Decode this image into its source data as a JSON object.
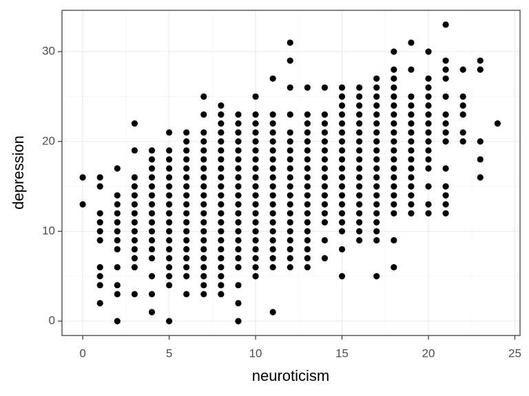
{
  "chart_data": {
    "type": "scatter",
    "x_label": "neuroticism",
    "y_label": "depression",
    "color": "#000000",
    "grid": true,
    "xlim": [
      -1.2,
      25.3
    ],
    "ylim": [
      -1.6,
      34.6
    ],
    "xticks": [
      0,
      5,
      10,
      15,
      20,
      25
    ],
    "yticks": [
      0,
      10,
      20,
      30
    ],
    "x": [
      0,
      0,
      1,
      1,
      1,
      1,
      1,
      1,
      1,
      1,
      1,
      1,
      2,
      2,
      2,
      2,
      2,
      2,
      2,
      2,
      2,
      2,
      2,
      2,
      3,
      3,
      3,
      3,
      3,
      3,
      3,
      3,
      3,
      3,
      3,
      3,
      3,
      3,
      4,
      4,
      4,
      4,
      4,
      4,
      4,
      4,
      4,
      4,
      4,
      4,
      4,
      4,
      4,
      4,
      5,
      5,
      5,
      5,
      5,
      5,
      5,
      5,
      5,
      5,
      5,
      5,
      5,
      5,
      5,
      5,
      5,
      5,
      6,
      6,
      6,
      6,
      6,
      6,
      6,
      6,
      6,
      6,
      6,
      6,
      6,
      6,
      6,
      6,
      6,
      6,
      7,
      7,
      7,
      7,
      7,
      7,
      7,
      7,
      7,
      7,
      7,
      7,
      7,
      7,
      7,
      7,
      7,
      7,
      7,
      7,
      7,
      8,
      8,
      8,
      8,
      8,
      8,
      8,
      8,
      8,
      8,
      8,
      8,
      8,
      8,
      8,
      8,
      8,
      8,
      8,
      8,
      8,
      8,
      9,
      9,
      9,
      9,
      9,
      9,
      9,
      9,
      9,
      9,
      9,
      9,
      9,
      9,
      9,
      9,
      9,
      9,
      9,
      9,
      9,
      10,
      10,
      10,
      10,
      10,
      10,
      10,
      10,
      10,
      10,
      10,
      10,
      10,
      10,
      10,
      10,
      10,
      10,
      10,
      10,
      11,
      11,
      11,
      11,
      11,
      11,
      11,
      11,
      11,
      11,
      11,
      11,
      11,
      11,
      11,
      11,
      11,
      11,
      11,
      11,
      12,
      12,
      12,
      12,
      12,
      12,
      12,
      12,
      12,
      12,
      12,
      12,
      12,
      12,
      12,
      12,
      12,
      12,
      12,
      12,
      13,
      13,
      13,
      13,
      13,
      13,
      13,
      13,
      13,
      13,
      13,
      13,
      13,
      13,
      13,
      13,
      13,
      13,
      13,
      14,
      14,
      14,
      14,
      14,
      14,
      14,
      14,
      14,
      14,
      14,
      14,
      14,
      14,
      14,
      14,
      15,
      15,
      15,
      15,
      15,
      15,
      15,
      15,
      15,
      15,
      15,
      15,
      15,
      15,
      15,
      15,
      15,
      15,
      15,
      16,
      16,
      16,
      16,
      16,
      16,
      16,
      16,
      16,
      16,
      16,
      16,
      16,
      16,
      16,
      16,
      16,
      16,
      17,
      17,
      17,
      17,
      17,
      17,
      17,
      17,
      17,
      17,
      17,
      17,
      17,
      17,
      17,
      17,
      17,
      17,
      17,
      17,
      18,
      18,
      18,
      18,
      18,
      18,
      18,
      18,
      18,
      18,
      18,
      18,
      18,
      18,
      18,
      18,
      18,
      18,
      18,
      18,
      19,
      19,
      19,
      19,
      19,
      19,
      19,
      19,
      19,
      19,
      19,
      19,
      19,
      19,
      19,
      19,
      20,
      20,
      20,
      20,
      20,
      20,
      20,
      20,
      20,
      20,
      20,
      20,
      20,
      20,
      20,
      21,
      21,
      21,
      21,
      21,
      21,
      21,
      21,
      21,
      21,
      21,
      21,
      21,
      21,
      22,
      22,
      22,
      22,
      22,
      22,
      23,
      23,
      23,
      23,
      23,
      24
    ],
    "values": [
      16,
      13,
      16,
      15,
      12,
      11,
      10,
      9,
      6,
      5,
      4,
      2,
      17,
      14,
      13,
      12,
      11,
      10,
      9,
      8,
      6,
      4,
      3,
      0,
      22,
      19,
      16,
      15,
      14,
      13,
      12,
      11,
      10,
      9,
      8,
      7,
      6,
      3,
      19,
      18,
      17,
      16,
      15,
      14,
      13,
      12,
      11,
      10,
      9,
      8,
      7,
      5,
      3,
      1,
      21,
      19,
      18,
      17,
      16,
      15,
      14,
      13,
      12,
      11,
      10,
      9,
      8,
      7,
      6,
      5,
      4,
      0,
      21,
      20,
      19,
      18,
      17,
      16,
      15,
      14,
      13,
      12,
      11,
      10,
      9,
      8,
      7,
      6,
      5,
      3,
      25,
      23,
      21,
      20,
      19,
      18,
      17,
      16,
      15,
      14,
      13,
      12,
      11,
      10,
      9,
      8,
      7,
      6,
      5,
      4,
      3,
      24,
      23,
      22,
      21,
      20,
      19,
      18,
      17,
      16,
      15,
      14,
      13,
      12,
      11,
      10,
      9,
      8,
      7,
      6,
      5,
      4,
      3,
      23,
      22,
      21,
      20,
      19,
      18,
      17,
      16,
      15,
      14,
      13,
      12,
      11,
      10,
      9,
      8,
      7,
      6,
      4,
      2,
      0,
      25,
      23,
      22,
      21,
      20,
      19,
      18,
      17,
      16,
      15,
      14,
      13,
      12,
      11,
      10,
      9,
      8,
      7,
      6,
      5,
      27,
      23,
      22,
      21,
      20,
      19,
      18,
      17,
      16,
      15,
      14,
      13,
      12,
      11,
      10,
      9,
      8,
      7,
      6,
      1,
      31,
      29,
      26,
      23,
      21,
      20,
      19,
      18,
      17,
      16,
      15,
      14,
      13,
      12,
      11,
      10,
      9,
      8,
      7,
      6,
      26,
      23,
      22,
      21,
      20,
      19,
      18,
      17,
      16,
      15,
      14,
      13,
      12,
      11,
      10,
      9,
      8,
      7,
      6,
      26,
      23,
      22,
      21,
      20,
      19,
      18,
      17,
      16,
      15,
      14,
      13,
      12,
      11,
      9,
      7,
      26,
      25,
      24,
      23,
      22,
      21,
      20,
      19,
      18,
      17,
      16,
      15,
      14,
      13,
      12,
      11,
      10,
      8,
      5,
      26,
      25,
      24,
      23,
      22,
      21,
      20,
      19,
      18,
      17,
      16,
      15,
      14,
      13,
      12,
      11,
      10,
      9,
      27,
      26,
      25,
      24,
      23,
      22,
      21,
      20,
      19,
      18,
      17,
      16,
      15,
      14,
      13,
      12,
      11,
      10,
      9,
      5,
      30,
      28,
      27,
      26,
      25,
      24,
      23,
      22,
      21,
      20,
      19,
      18,
      17,
      16,
      15,
      14,
      13,
      12,
      9,
      6,
      31,
      28,
      25,
      24,
      23,
      22,
      21,
      20,
      19,
      18,
      17,
      16,
      15,
      14,
      13,
      12,
      30,
      27,
      26,
      25,
      24,
      23,
      22,
      21,
      20,
      19,
      18,
      17,
      15,
      13,
      12,
      33,
      29,
      28,
      27,
      25,
      23,
      22,
      21,
      20,
      17,
      15,
      14,
      13,
      12,
      28,
      25,
      24,
      23,
      21,
      20,
      29,
      28,
      20,
      18,
      16,
      22
    ]
  }
}
